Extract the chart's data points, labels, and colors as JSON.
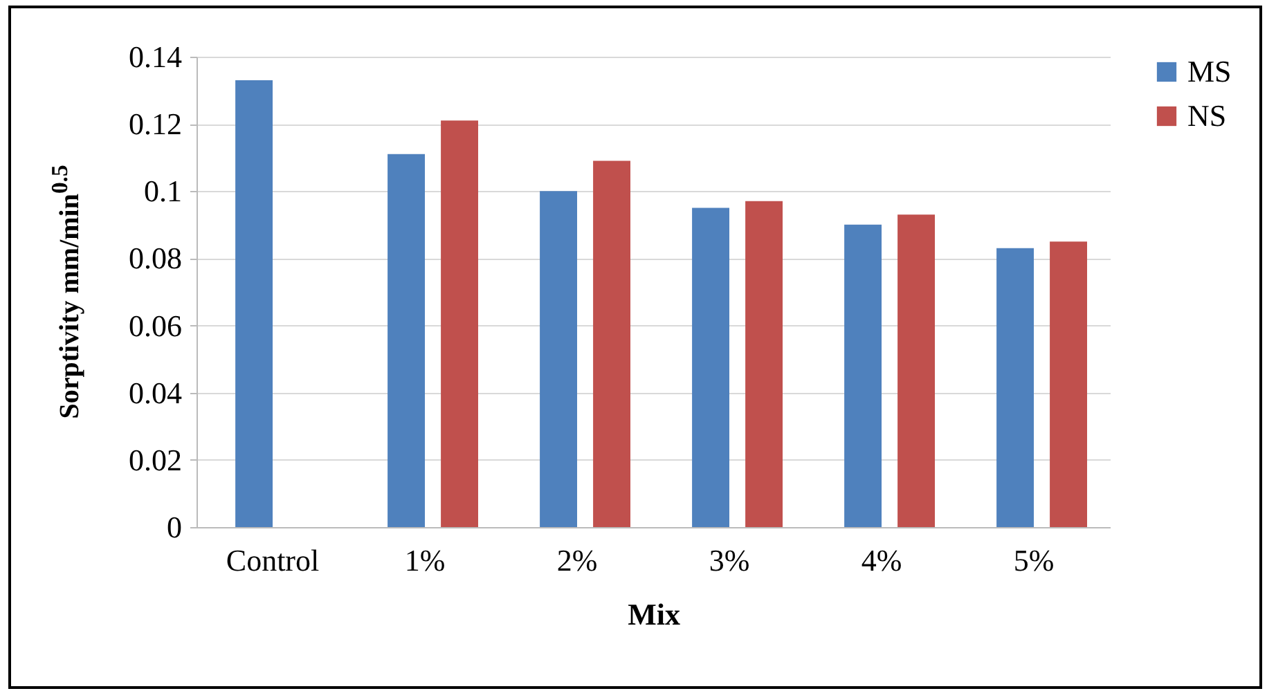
{
  "chart_data": {
    "type": "bar",
    "xlabel": "Mix",
    "ylabel": "Sorptivity mm/min$^{0.5}$",
    "categories": [
      "Control",
      "1%",
      "2%",
      "3%",
      "4%",
      "5%"
    ],
    "series": [
      {
        "name": "MS",
        "color": "#4f81bd",
        "values": [
          0.133,
          0.111,
          0.1,
          0.095,
          0.09,
          0.083
        ]
      },
      {
        "name": "NS",
        "color": "#c0504d",
        "values": [
          null,
          0.121,
          0.109,
          0.097,
          0.093,
          0.085
        ]
      }
    ],
    "ylim": [
      0,
      0.14
    ],
    "yticks": [
      0,
      0.02,
      0.04,
      0.06,
      0.08,
      0.1,
      0.12,
      0.14
    ],
    "grid": "y",
    "legend": "right"
  }
}
